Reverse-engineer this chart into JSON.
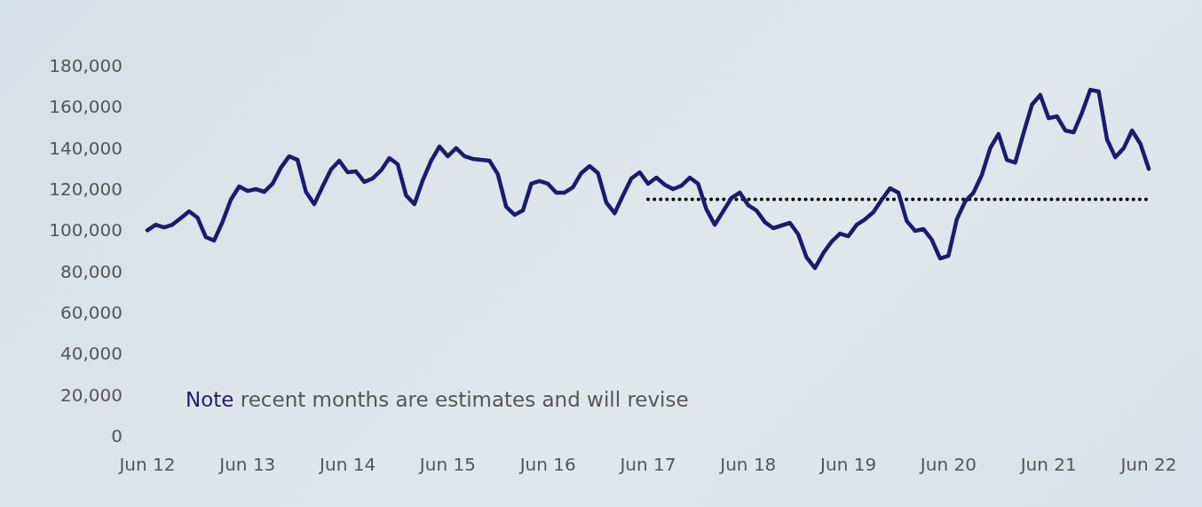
{
  "chart_data": {
    "type": "line",
    "categories": [
      "Jun 12",
      null,
      null,
      null,
      null,
      null,
      null,
      null,
      null,
      null,
      null,
      null,
      "Jun 13",
      null,
      null,
      null,
      null,
      null,
      null,
      null,
      null,
      null,
      null,
      null,
      "Jun 14",
      null,
      null,
      null,
      null,
      null,
      null,
      null,
      null,
      null,
      null,
      null,
      "Jun 15",
      null,
      null,
      null,
      null,
      null,
      null,
      null,
      null,
      null,
      null,
      null,
      "Jun 16",
      null,
      null,
      null,
      null,
      null,
      null,
      null,
      null,
      null,
      null,
      null,
      "Jun 17",
      null,
      null,
      null,
      null,
      null,
      null,
      null,
      null,
      null,
      null,
      null,
      "Jun 18",
      null,
      null,
      null,
      null,
      null,
      null,
      null,
      null,
      null,
      null,
      null,
      "Jun 19",
      null,
      null,
      null,
      null,
      null,
      null,
      null,
      null,
      null,
      null,
      null,
      "Jun 20",
      null,
      null,
      null,
      null,
      null,
      null,
      null,
      null,
      null,
      null,
      null,
      "Jun 21",
      null,
      null,
      null,
      null,
      null,
      null,
      null,
      null,
      null,
      null,
      null,
      "Jun 22"
    ],
    "series": [
      {
        "color": "#1b1b6f",
        "values": [
          100000,
          102700,
          101400,
          102700,
          105900,
          109200,
          106200,
          96700,
          95000,
          104000,
          114800,
          121300,
          119100,
          120000,
          118700,
          122600,
          130400,
          136000,
          134200,
          118700,
          112700,
          121300,
          129500,
          133800,
          128200,
          128600,
          123500,
          125200,
          129100,
          135100,
          132100,
          117000,
          112700,
          124300,
          133800,
          140700,
          136000,
          139900,
          136000,
          134700,
          134200,
          133800,
          127300,
          111400,
          107500,
          109600,
          122600,
          123900,
          122600,
          118300,
          118300,
          120900,
          127800,
          131200,
          127800,
          113500,
          108300,
          117000,
          125200,
          128200,
          122600,
          125600,
          122200,
          120000,
          121700,
          125600,
          122600,
          110100,
          102700,
          109200,
          115700,
          118300,
          112200,
          109600,
          104000,
          101000,
          102300,
          103600,
          98000,
          86800,
          81600,
          88900,
          94500,
          98400,
          97100,
          102700,
          105300,
          108800,
          114800,
          120400,
          118300,
          104500,
          99700,
          100600,
          95400,
          86300,
          87600,
          105300,
          114000,
          118300,
          126900,
          139900,
          146800,
          134200,
          132900,
          147200,
          161000,
          165800,
          154500,
          155400,
          148500,
          147600,
          157100,
          168300,
          167500,
          144200,
          135500,
          139900,
          148500,
          142000,
          129900
        ]
      },
      {
        "color": "#000000",
        "line_style": "dotted",
        "values": [
          null,
          null,
          null,
          null,
          null,
          null,
          null,
          null,
          null,
          null,
          null,
          null,
          null,
          null,
          null,
          null,
          null,
          null,
          null,
          null,
          null,
          null,
          null,
          null,
          null,
          null,
          null,
          null,
          null,
          null,
          null,
          null,
          null,
          null,
          null,
          null,
          null,
          null,
          null,
          null,
          null,
          null,
          null,
          null,
          null,
          null,
          null,
          null,
          null,
          null,
          null,
          null,
          null,
          null,
          null,
          null,
          null,
          null,
          null,
          null,
          115000,
          115000,
          115000,
          115000,
          115000,
          115000,
          115000,
          115000,
          115000,
          115000,
          115000,
          115000,
          115000,
          115000,
          115000,
          115000,
          115000,
          115000,
          115000,
          115000,
          115000,
          115000,
          115000,
          115000,
          115000,
          115000,
          115000,
          115000,
          115000,
          115000,
          115000,
          115000,
          115000,
          115000,
          115000,
          115000,
          115000,
          115000,
          115000,
          115000,
          115000,
          115000,
          115000,
          115000,
          115000,
          115000,
          115000,
          115000,
          115000,
          115000,
          115000,
          115000,
          115000,
          115000,
          115000,
          115000,
          115000,
          115000,
          115000,
          115000,
          115000
        ]
      }
    ],
    "ylim": [
      0,
      180000
    ],
    "yticks": [
      {
        "value": 0,
        "label": "0"
      },
      {
        "value": 20000,
        "label": "20,000"
      },
      {
        "value": 40000,
        "label": "40,000"
      },
      {
        "value": 60000,
        "label": "60,000"
      },
      {
        "value": 80000,
        "label": "80,000"
      },
      {
        "value": 100000,
        "label": "100,000"
      },
      {
        "value": 120000,
        "label": "120,000"
      },
      {
        "value": 140000,
        "label": "140,000"
      },
      {
        "value": 160000,
        "label": "160,000"
      },
      {
        "value": 180000,
        "label": "180,000"
      }
    ],
    "line_style": "solid",
    "marker": "none",
    "annotations": [
      "Note recent months are estimates and will revise"
    ]
  }
}
